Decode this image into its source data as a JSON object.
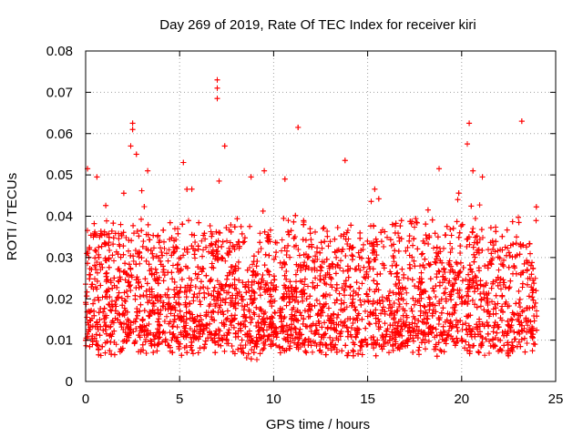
{
  "chart_data": {
    "type": "scatter",
    "title": "Day 269 of 2019, Rate Of TEC Index for receiver kiri",
    "xlabel": "GPS time / hours",
    "ylabel": "ROTI / TECUs",
    "xlim": [
      0,
      25
    ],
    "ylim": [
      0,
      0.08
    ],
    "x_ticks": [
      0,
      5,
      10,
      15,
      20,
      25
    ],
    "x_tick_labels": [
      "0",
      "5",
      "10",
      "15",
      "20",
      "25"
    ],
    "y_ticks": [
      0,
      0.01,
      0.02,
      0.03,
      0.04,
      0.05,
      0.06,
      0.07,
      0.08
    ],
    "y_tick_labels": [
      "0",
      "0.01",
      "0.02",
      "0.03",
      "0.04",
      "0.05",
      "0.06",
      "0.07",
      "0.08"
    ],
    "grid": true,
    "marker": "plus",
    "color": "#ff0000",
    "series": [
      {
        "name": "ROTI",
        "x_range_hours": [
          0,
          24
        ],
        "typical_range": [
          0.005,
          0.03
        ],
        "sample_count_shown": 5500,
        "notable_points": [
          {
            "x": 7.0,
            "y": 0.073
          },
          {
            "x": 7.0,
            "y": 0.071
          },
          {
            "x": 7.0,
            "y": 0.0685
          },
          {
            "x": 23.2,
            "y": 0.063
          },
          {
            "x": 2.5,
            "y": 0.0625
          },
          {
            "x": 2.5,
            "y": 0.061
          },
          {
            "x": 11.3,
            "y": 0.0615
          },
          {
            "x": 20.4,
            "y": 0.0625
          },
          {
            "x": 20.3,
            "y": 0.0575
          },
          {
            "x": 7.4,
            "y": 0.057
          },
          {
            "x": 2.4,
            "y": 0.057
          },
          {
            "x": 2.7,
            "y": 0.055
          },
          {
            "x": 13.8,
            "y": 0.0535
          },
          {
            "x": 5.2,
            "y": 0.053
          },
          {
            "x": 0.1,
            "y": 0.0515
          },
          {
            "x": 9.5,
            "y": 0.051
          },
          {
            "x": 18.8,
            "y": 0.0515
          },
          {
            "x": 3.3,
            "y": 0.051
          },
          {
            "x": 20.6,
            "y": 0.051
          },
          {
            "x": 21.1,
            "y": 0.0495
          },
          {
            "x": 8.8,
            "y": 0.0495
          },
          {
            "x": 0.6,
            "y": 0.0495
          },
          {
            "x": 7.1,
            "y": 0.0485
          },
          {
            "x": 10.6,
            "y": 0.049
          }
        ]
      }
    ]
  }
}
